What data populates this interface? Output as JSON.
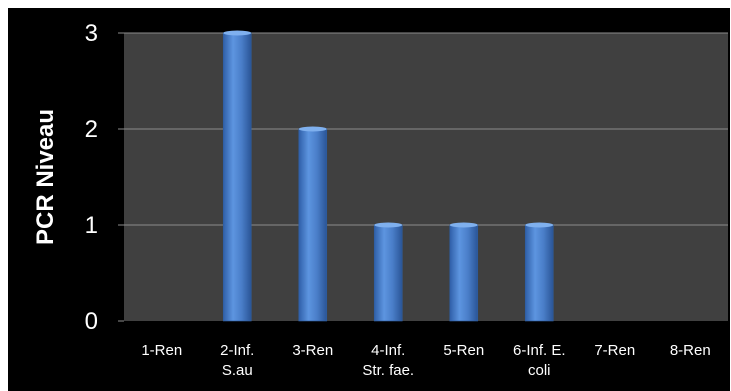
{
  "chart_data": {
    "type": "bar",
    "title": "",
    "xlabel": "",
    "ylabel": "PCR Niveau",
    "ylim": [
      0,
      3
    ],
    "yticks": [
      0,
      1,
      2,
      3
    ],
    "grid": true,
    "categories": [
      [
        "1-Ren"
      ],
      [
        "2-Inf.",
        "S.au"
      ],
      [
        "3-Ren"
      ],
      [
        "4-Inf.",
        "Str. fae."
      ],
      [
        "5-Ren"
      ],
      [
        "6-Inf.  E.",
        "coli"
      ],
      [
        "7-Ren"
      ],
      [
        "8-Ren"
      ]
    ],
    "values": [
      0,
      3,
      2,
      1,
      1,
      1,
      0,
      0
    ],
    "colors": {
      "background": "#000000",
      "plot_area": "#404040",
      "bar": "#4a7ec9",
      "bar_edge": "#2f5d9e",
      "grid": "#8c8c8c",
      "text": "#ffffff"
    }
  }
}
